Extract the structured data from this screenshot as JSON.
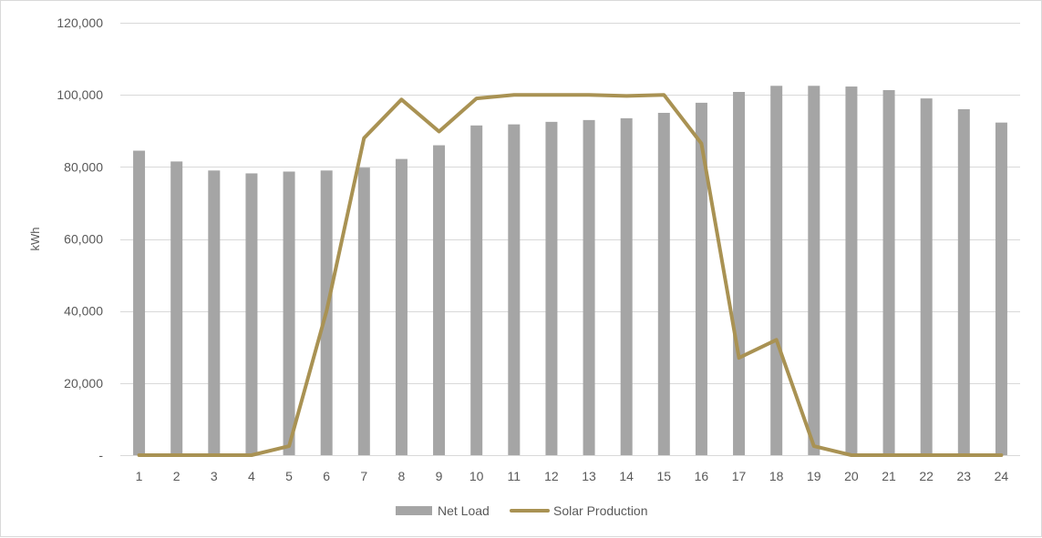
{
  "chart_data": {
    "type": "bar",
    "categories": [
      "1",
      "2",
      "3",
      "4",
      "5",
      "6",
      "7",
      "8",
      "9",
      "10",
      "11",
      "12",
      "13",
      "14",
      "15",
      "16",
      "17",
      "18",
      "19",
      "20",
      "21",
      "22",
      "23",
      "24"
    ],
    "series": [
      {
        "name": "Net Load",
        "type": "bar",
        "color": "#a5a5a5",
        "values": [
          84500,
          81500,
          79000,
          78200,
          78700,
          79000,
          79800,
          82200,
          86000,
          91500,
          91800,
          92500,
          93000,
          93500,
          95000,
          97800,
          100800,
          102500,
          102500,
          102300,
          101300,
          99000,
          96000,
          92300
        ]
      },
      {
        "name": "Solar Production",
        "type": "line",
        "color": "#a99253",
        "values": [
          0,
          0,
          0,
          0,
          2500,
          40000,
          88000,
          98700,
          89800,
          99000,
          100000,
          100000,
          100000,
          99700,
          100000,
          86500,
          27000,
          32000,
          2500,
          0,
          0,
          0,
          0,
          0
        ]
      }
    ],
    "ylabel": "kWh",
    "xlabel": "",
    "ylim": [
      0,
      120000
    ],
    "yticks": [
      {
        "value": 0,
        "label": "-"
      },
      {
        "value": 20000,
        "label": "20,000"
      },
      {
        "value": 40000,
        "label": "40,000"
      },
      {
        "value": 60000,
        "label": "60,000"
      },
      {
        "value": 80000,
        "label": "80,000"
      },
      {
        "value": 100000,
        "label": "100,000"
      },
      {
        "value": 120000,
        "label": "120,000"
      }
    ],
    "grid": true,
    "legend_position": "bottom"
  }
}
